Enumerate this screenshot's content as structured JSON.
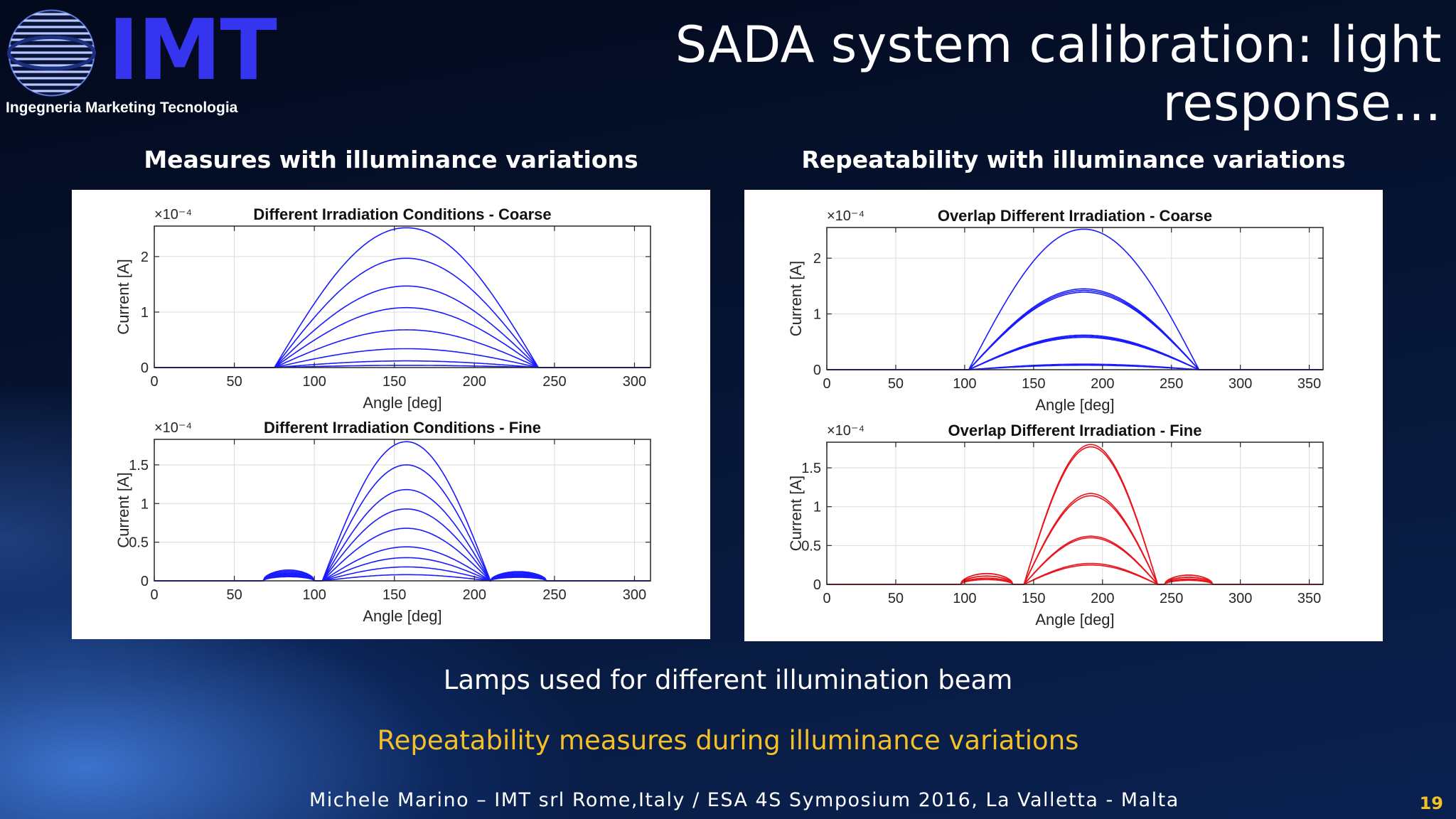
{
  "logo": {
    "text": "IMT",
    "subtitle": "Ingegneria Marketing Tecnologia"
  },
  "title": "SADA system calibration: light response…",
  "sections": {
    "left_heading": "Measures with illuminance variations",
    "right_heading": "Repeatability with illuminance variations"
  },
  "captions": {
    "lamps": "Lamps used for different illumination beam",
    "repeatability": "Repeatability measures during illuminance variations"
  },
  "footer": "Michele Marino – IMT srl Rome,Italy / ESA 4S Symposium 2016, La Valletta - Malta",
  "page_number": "19",
  "colors": {
    "blue_series": "#1a1aff",
    "red_series": "#e8141c",
    "accent": "#f4c02a"
  },
  "chart_data": [
    {
      "type": "line",
      "title": "Different Irradiation Conditions - Coarse",
      "xlabel": "Angle [deg]",
      "ylabel": "Current [A]",
      "exponent": "×10⁻⁴",
      "xlim": [
        0,
        310
      ],
      "ylim": [
        0,
        2.55
      ],
      "xticks": [
        "0",
        "50",
        "100",
        "150",
        "200",
        "250",
        "300"
      ],
      "yticks": [
        "0",
        "1",
        "2"
      ],
      "ytick_values": [
        0,
        1,
        2
      ],
      "curve": {
        "center": 150,
        "start": 75,
        "end": 240,
        "base": 0,
        "shape": "sine"
      },
      "series_color": "#1a1aff",
      "series": [
        {
          "peak": 2.52
        },
        {
          "peak": 1.97
        },
        {
          "peak": 1.47
        },
        {
          "peak": 1.08
        },
        {
          "peak": 0.68
        },
        {
          "peak": 0.34
        },
        {
          "peak": 0.12
        },
        {
          "peak": 0.04
        }
      ],
      "grid": true
    },
    {
      "type": "line",
      "title": "Different Irradiation Conditions - Fine",
      "xlabel": "Angle [deg]",
      "ylabel": "Current [A]",
      "exponent": "×10⁻⁴",
      "xlim": [
        0,
        310
      ],
      "ylim": [
        0,
        1.83
      ],
      "xticks": [
        "0",
        "50",
        "100",
        "150",
        "200",
        "250",
        "300"
      ],
      "yticks": [
        "0",
        "0.5",
        "1",
        "1.5"
      ],
      "ytick_values": [
        0,
        0.5,
        1,
        1.5
      ],
      "curve": {
        "center": 157,
        "start": 105,
        "end": 210,
        "base": 0,
        "shape": "sine",
        "shoulders": [
          [
            68,
            100,
            0.14
          ],
          [
            210,
            245,
            0.12
          ]
        ]
      },
      "series_color": "#1a1aff",
      "series": [
        {
          "peak": 1.8
        },
        {
          "peak": 1.5
        },
        {
          "peak": 1.18
        },
        {
          "peak": 0.93
        },
        {
          "peak": 0.68
        },
        {
          "peak": 0.44
        },
        {
          "peak": 0.3
        },
        {
          "peak": 0.18
        },
        {
          "peak": 0.08
        }
      ],
      "grid": true
    },
    {
      "type": "line",
      "title": "Overlap Different Irradiation - Coarse",
      "xlabel": "Angle [deg]",
      "ylabel": "Current [A]",
      "exponent": "×10⁻⁴",
      "xlim": [
        0,
        360
      ],
      "ylim": [
        0,
        2.55
      ],
      "xticks": [
        "0",
        "50",
        "100",
        "150",
        "200",
        "250",
        "300",
        "350"
      ],
      "yticks": [
        "0",
        "1",
        "2"
      ],
      "ytick_values": [
        0,
        1,
        2
      ],
      "curve": {
        "center": 182,
        "start": 103,
        "end": 270,
        "base": 0,
        "shape": "sine"
      },
      "series_color": "#1a1aff",
      "series": [
        {
          "peak": 2.52
        },
        {
          "peak": 1.45
        },
        {
          "peak": 1.42
        },
        {
          "peak": 1.39
        },
        {
          "peak": 0.62
        },
        {
          "peak": 0.6
        },
        {
          "peak": 0.58
        },
        {
          "peak": 0.1
        },
        {
          "peak": 0.08
        }
      ],
      "grid": true
    },
    {
      "type": "line",
      "title": "Overlap Different Irradiation - Fine",
      "xlabel": "Angle [deg]",
      "ylabel": "Current [A]",
      "exponent": "×10⁻⁴",
      "xlim": [
        0,
        360
      ],
      "ylim": [
        0,
        1.83
      ],
      "xticks": [
        "0",
        "50",
        "100",
        "150",
        "200",
        "250",
        "300",
        "350"
      ],
      "yticks": [
        "0",
        "0.5",
        "1",
        "1.5"
      ],
      "ytick_values": [
        0,
        0.5,
        1,
        1.5
      ],
      "curve": {
        "center": 190,
        "start": 143,
        "end": 240,
        "base": 0,
        "shape": "sine",
        "shoulders": [
          [
            97,
            135,
            0.14
          ],
          [
            245,
            280,
            0.12
          ]
        ]
      },
      "series_color": "#e8141c",
      "series": [
        {
          "peak": 1.8
        },
        {
          "peak": 1.77
        },
        {
          "peak": 1.17
        },
        {
          "peak": 1.14
        },
        {
          "peak": 0.62
        },
        {
          "peak": 0.6
        },
        {
          "peak": 0.27
        },
        {
          "peak": 0.25
        }
      ],
      "grid": true
    }
  ]
}
